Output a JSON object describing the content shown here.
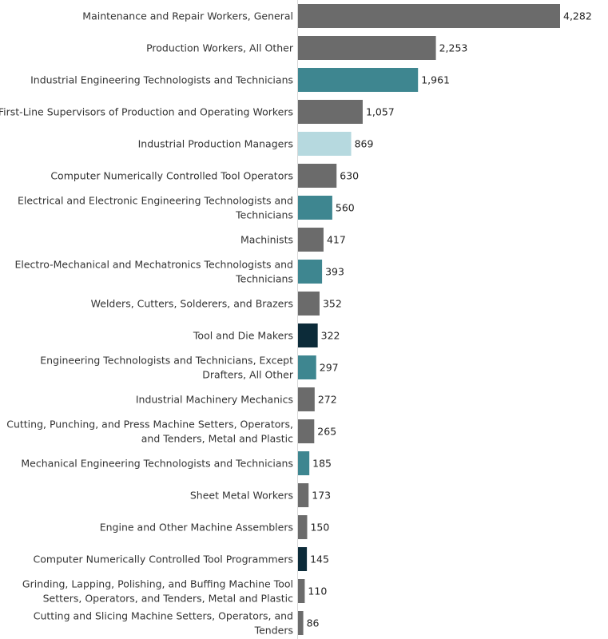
{
  "chart_data": {
    "type": "bar",
    "orientation": "horizontal",
    "title": "",
    "xlabel": "",
    "ylabel": "",
    "xlim": [
      0,
      4282
    ],
    "grid": false,
    "legend": "none",
    "colors": {
      "gray": "#6b6b6b",
      "teal": "#3e8690",
      "light": "#b6d9df",
      "dark": "#0c2b39"
    },
    "bars": [
      {
        "category": [
          "Maintenance and Repair Workers, General"
        ],
        "value": 4282,
        "label": "4,282",
        "color": "gray"
      },
      {
        "category": [
          "Production Workers, All Other"
        ],
        "value": 2253,
        "label": "2,253",
        "color": "gray"
      },
      {
        "category": [
          "Industrial Engineering Technologists and Technicians"
        ],
        "value": 1961,
        "label": "1,961",
        "color": "teal"
      },
      {
        "category": [
          "First-Line Supervisors of Production and Operating Workers"
        ],
        "value": 1057,
        "label": "1,057",
        "color": "gray"
      },
      {
        "category": [
          "Industrial Production Managers"
        ],
        "value": 869,
        "label": "869",
        "color": "light"
      },
      {
        "category": [
          "Computer Numerically Controlled Tool Operators"
        ],
        "value": 630,
        "label": "630",
        "color": "gray"
      },
      {
        "category": [
          "Electrical and Electronic Engineering Technologists and",
          "Technicians"
        ],
        "value": 560,
        "label": "560",
        "color": "teal"
      },
      {
        "category": [
          "Machinists"
        ],
        "value": 417,
        "label": "417",
        "color": "gray"
      },
      {
        "category": [
          "Electro-Mechanical and Mechatronics Technologists and",
          "Technicians"
        ],
        "value": 393,
        "label": "393",
        "color": "teal"
      },
      {
        "category": [
          "Welders, Cutters, Solderers, and Brazers"
        ],
        "value": 352,
        "label": "352",
        "color": "gray"
      },
      {
        "category": [
          "Tool and Die Makers"
        ],
        "value": 322,
        "label": "322",
        "color": "dark"
      },
      {
        "category": [
          "Engineering Technologists and Technicians, Except",
          "Drafters, All Other"
        ],
        "value": 297,
        "label": "297",
        "color": "teal"
      },
      {
        "category": [
          "Industrial Machinery Mechanics"
        ],
        "value": 272,
        "label": "272",
        "color": "gray"
      },
      {
        "category": [
          "Cutting, Punching, and Press Machine Setters, Operators,",
          "and Tenders, Metal and Plastic"
        ],
        "value": 265,
        "label": "265",
        "color": "gray"
      },
      {
        "category": [
          "Mechanical Engineering Technologists and Technicians"
        ],
        "value": 185,
        "label": "185",
        "color": "teal"
      },
      {
        "category": [
          "Sheet Metal Workers"
        ],
        "value": 173,
        "label": "173",
        "color": "gray"
      },
      {
        "category": [
          "Engine and Other Machine Assemblers"
        ],
        "value": 150,
        "label": "150",
        "color": "gray"
      },
      {
        "category": [
          "Computer Numerically Controlled Tool Programmers"
        ],
        "value": 145,
        "label": "145",
        "color": "dark"
      },
      {
        "category": [
          "Grinding, Lapping, Polishing, and Buffing Machine Tool",
          "Setters, Operators, and Tenders, Metal and Plastic"
        ],
        "value": 110,
        "label": "110",
        "color": "gray"
      },
      {
        "category": [
          "Cutting and Slicing Machine Setters, Operators, and",
          "Tenders"
        ],
        "value": 86,
        "label": "86",
        "color": "gray"
      }
    ]
  }
}
